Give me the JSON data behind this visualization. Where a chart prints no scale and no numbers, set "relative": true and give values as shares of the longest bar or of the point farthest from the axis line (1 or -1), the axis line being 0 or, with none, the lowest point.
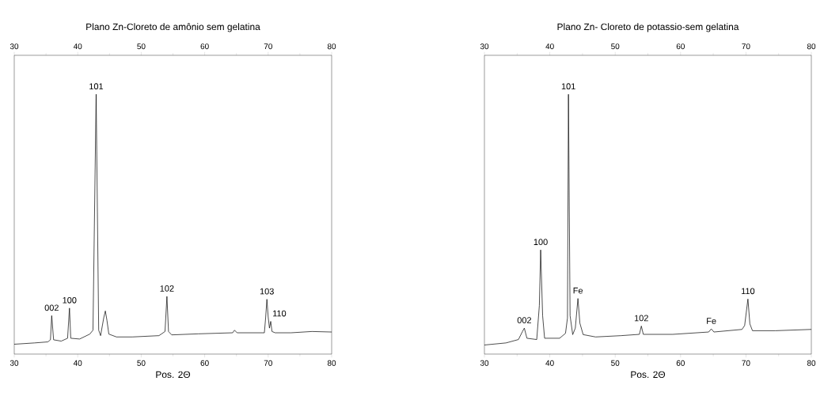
{
  "chart_data": [
    {
      "type": "line",
      "title": "Plano Zn-Cloreto de amônio sem gelatina",
      "xlabel": "Pos. 2Θ",
      "relative": true,
      "tick_labels": "x",
      "xlim": [
        30,
        80
      ],
      "xticks": [
        30,
        40,
        50,
        60,
        70,
        80
      ],
      "x2lim": [
        30,
        80
      ],
      "x2ticks": [
        30,
        40,
        50,
        60,
        70,
        80
      ],
      "series": [
        {
          "color": "#000000",
          "x": [
            30,
            33.2,
            35.3,
            35.7,
            35.9,
            36.2,
            37.4,
            38.4,
            38.7,
            38.9,
            40.3,
            41.9,
            42.4,
            42.9,
            43.3,
            43.6,
            44.1,
            44.35,
            44.6,
            44.9,
            46.1,
            48.6,
            52.8,
            53.75,
            54.05,
            54.3,
            54.8,
            59.0,
            64.4,
            64.7,
            65.1,
            69.4,
            69.6,
            69.8,
            70.0,
            70.2,
            70.4,
            70.6,
            71.1,
            73.6,
            76.9,
            80
          ],
          "values": [
            0.038,
            0.043,
            0.047,
            0.055,
            0.148,
            0.055,
            0.05,
            0.061,
            0.177,
            0.061,
            0.058,
            0.077,
            0.092,
            1.0,
            0.092,
            0.071,
            0.14,
            0.166,
            0.13,
            0.077,
            0.066,
            0.066,
            0.071,
            0.087,
            0.222,
            0.087,
            0.074,
            0.078,
            0.082,
            0.092,
            0.082,
            0.082,
            0.14,
            0.211,
            0.143,
            0.1,
            0.126,
            0.087,
            0.082,
            0.082,
            0.087,
            0.085
          ]
        }
      ],
      "annotations": [
        {
          "text": "002",
          "x": 35.9,
          "y": 0.148
        },
        {
          "text": "100",
          "x": 38.7,
          "y": 0.177
        },
        {
          "text": "101",
          "x": 42.9,
          "y": 1.0
        },
        {
          "text": "102",
          "x": 54.05,
          "y": 0.222
        },
        {
          "text": "103",
          "x": 69.8,
          "y": 0.211
        },
        {
          "text": "110",
          "x": 70.4,
          "y": 0.126
        }
      ]
    },
    {
      "type": "line",
      "title": "Plano Zn- Cloreto de potassio-sem gelatina",
      "xlabel": "Pos. 2Θ",
      "relative": true,
      "tick_labels": "x",
      "xlim": [
        30,
        80
      ],
      "xticks": [
        30,
        40,
        50,
        60,
        70,
        80
      ],
      "x2lim": [
        30,
        80
      ],
      "x2ticks": [
        30,
        40,
        50,
        60,
        70,
        80
      ],
      "series": [
        {
          "color": "#000000",
          "x": [
            30,
            33.3,
            35.2,
            35.8,
            36.1,
            36.5,
            38.0,
            38.4,
            38.6,
            38.9,
            39.2,
            41.5,
            42.4,
            42.7,
            42.85,
            43.1,
            43.5,
            43.9,
            44.3,
            44.6,
            45.1,
            47.0,
            50.9,
            53.7,
            54.0,
            54.3,
            58.8,
            64.3,
            64.7,
            65.1,
            69.4,
            69.8,
            70.3,
            70.6,
            71.0,
            74.5,
            80
          ],
          "values": [
            0.035,
            0.043,
            0.056,
            0.086,
            0.1,
            0.061,
            0.056,
            0.187,
            0.401,
            0.148,
            0.061,
            0.061,
            0.08,
            0.139,
            1.0,
            0.148,
            0.075,
            0.1,
            0.214,
            0.119,
            0.075,
            0.066,
            0.071,
            0.076,
            0.108,
            0.076,
            0.076,
            0.085,
            0.097,
            0.085,
            0.095,
            0.11,
            0.212,
            0.116,
            0.09,
            0.09,
            0.095
          ]
        }
      ],
      "annotations": [
        {
          "text": "002",
          "x": 36.1,
          "y": 0.1
        },
        {
          "text": "100",
          "x": 38.6,
          "y": 0.401
        },
        {
          "text": "101",
          "x": 42.85,
          "y": 1.0
        },
        {
          "text": "Fe",
          "x": 44.3,
          "y": 0.214
        },
        {
          "text": "102",
          "x": 54.0,
          "y": 0.108
        },
        {
          "text": "Fe",
          "x": 64.7,
          "y": 0.097
        },
        {
          "text": "110",
          "x": 70.3,
          "y": 0.212
        }
      ]
    }
  ]
}
